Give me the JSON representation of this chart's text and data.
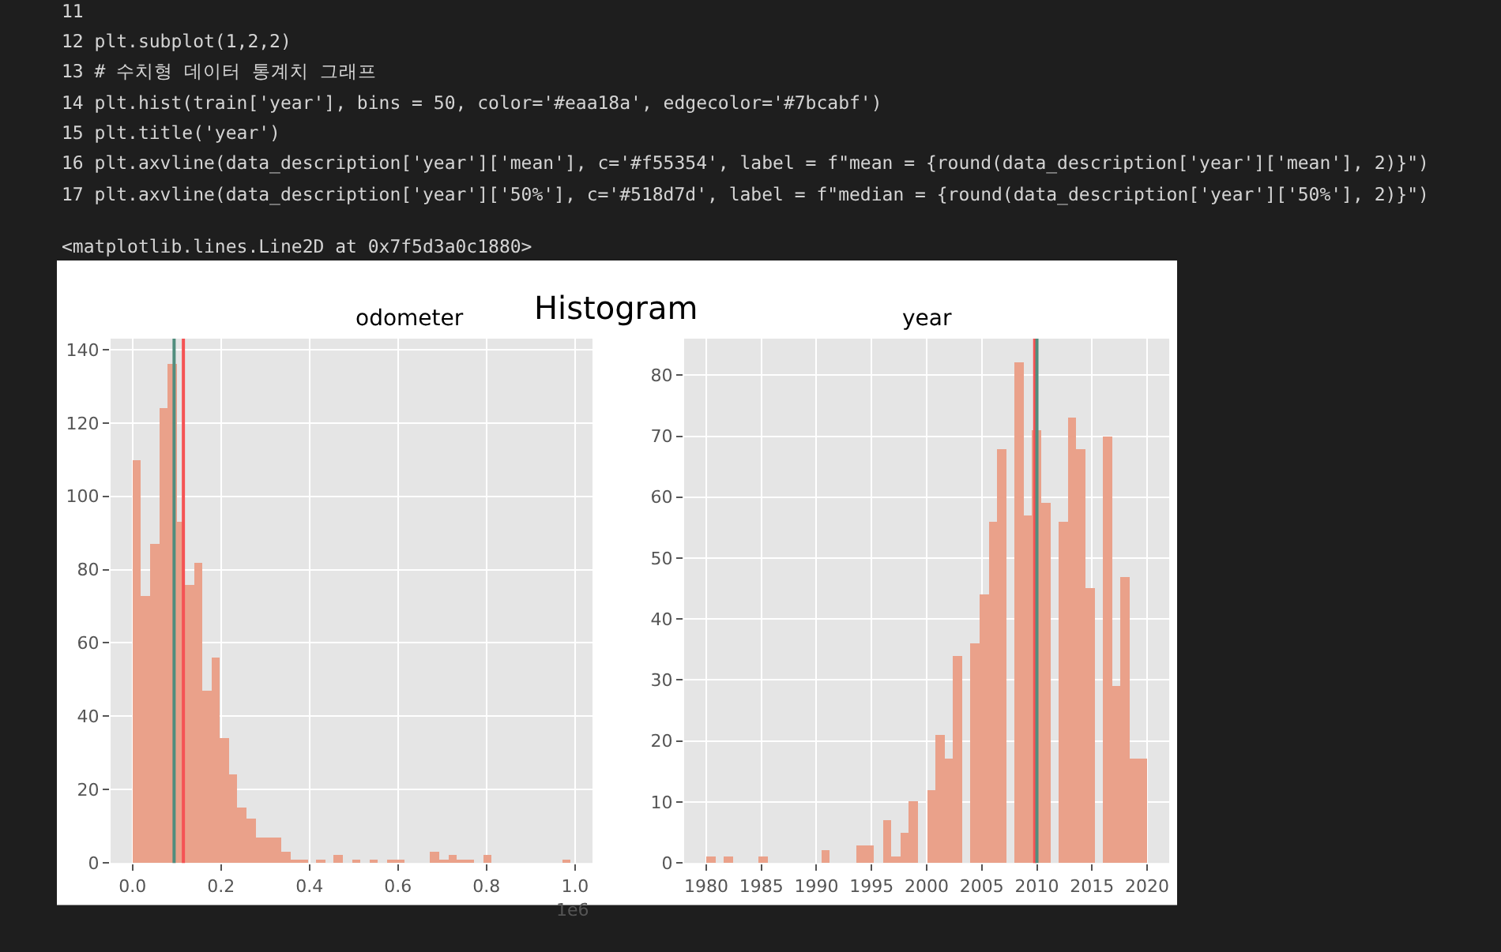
{
  "chart_data": [
    {
      "type": "other",
      "annotations": [
        "11",
        "12 plt.subplot(1,2,2)",
        "13 # 수치형 데이터 통계치 그래프",
        "14 plt.hist(train['year'], bins = 50, color='#eaa18a', edgecolor='#7bcabf')",
        "15 plt.title('year')",
        "16 plt.axvline(data_description['year']['mean'], c='#f55354', label = f\"mean = {round(data_description['year']['mean'], 2)}\")",
        "17 plt.axvline(data_description['year']['50%'], c='#518d7d', label = f\"median = {round(data_description['year']['50%'], 2)}\")",
        "<matplotlib.lines.Line2D at 0x7f5d3a0c1880>"
      ]
    },
    {
      "type": "other",
      "title": "Histogram"
    },
    {
      "type": "histogram",
      "title": "odometer",
      "color": "#eaa18a",
      "bins": [
        0,
        0.0198,
        0.0396,
        0.0594,
        0.0792,
        0.099,
        0.1188,
        0.1386,
        0.1584,
        0.1782,
        0.198,
        0.2178,
        0.2376,
        0.2574,
        0.2772,
        0.297,
        0.3168,
        0.3366,
        0.3564,
        0.3762,
        0.396,
        0.4158,
        0.4356,
        0.4554,
        0.4752,
        0.495,
        0.5148,
        0.5346,
        0.5544,
        0.5742,
        0.594,
        0.6138,
        0.6336,
        0.6534,
        0.6732,
        0.693,
        0.7128,
        0.7326,
        0.7524,
        0.7722,
        0.792,
        0.8118,
        0.8316,
        0.8514,
        0.8712,
        0.891,
        0.9108,
        0.9306,
        0.9504,
        0.9702,
        0.99
      ],
      "values": [
        110,
        73,
        87,
        124,
        136,
        93,
        76,
        82,
        47,
        56,
        34,
        24,
        15,
        12,
        7,
        7,
        7,
        3,
        1,
        1,
        0,
        1,
        0,
        2,
        0,
        1,
        0,
        1,
        0,
        1,
        1,
        0,
        0,
        0,
        3,
        1,
        2,
        1,
        1,
        0,
        2,
        0,
        0,
        0,
        0,
        0,
        0,
        0,
        0,
        1
      ],
      "xlim": [
        -0.0495,
        1.0395
      ],
      "ylim": [
        0,
        143
      ],
      "xticks": [
        {
          "value": 0,
          "label": "0.0"
        },
        0.2,
        0.4,
        0.6,
        0.8,
        {
          "value": 1,
          "label": "1.0"
        }
      ],
      "yticks": [
        0,
        20,
        40,
        60,
        80,
        100,
        120,
        140
      ],
      "grid": true,
      "annotations": [
        "1e6"
      ],
      "ref_lines": [
        {
          "axis": "x",
          "value": 0.115,
          "color": "#f55354"
        },
        {
          "axis": "x",
          "value": 0.094,
          "color": "#518d7d"
        }
      ]
    },
    {
      "type": "histogram",
      "title": "year",
      "color": "#eaa18a",
      "bins": [
        1980,
        1980.8,
        1981.6,
        1982.4,
        1983.2,
        1984,
        1984.8,
        1985.6,
        1986.4,
        1987.2,
        1988,
        1988.8,
        1989.6,
        1990.4,
        1991.2,
        1992,
        1992.8,
        1993.6,
        1994.4,
        1995.2,
        1996,
        1996.8,
        1997.6,
        1998.4,
        1999.2,
        2000,
        2000.8,
        2001.6,
        2002.4,
        2003.2,
        2004,
        2004.8,
        2005.6,
        2006.4,
        2007.2,
        2008,
        2008.8,
        2009.6,
        2010.4,
        2011.2,
        2012,
        2012.8,
        2013.6,
        2014.4,
        2015.2,
        2016,
        2016.8,
        2017.6,
        2018.4,
        2019.2,
        2020
      ],
      "values": [
        1,
        0,
        1,
        0,
        0,
        0,
        1,
        0,
        0,
        0,
        0,
        0,
        0,
        2,
        0,
        0,
        0,
        3,
        3,
        0,
        7,
        1,
        5,
        10,
        0,
        12,
        21,
        17,
        34,
        0,
        36,
        44,
        56,
        68,
        0,
        82,
        57,
        71,
        59,
        0,
        56,
        73,
        68,
        45,
        0,
        70,
        29,
        47,
        17,
        17
      ],
      "xlim": [
        1978,
        2022
      ],
      "ylim": [
        0,
        86
      ],
      "xticks": [
        1980,
        1985,
        1990,
        1995,
        2000,
        2005,
        2010,
        2015,
        2020
      ],
      "yticks": [
        0,
        10,
        20,
        30,
        40,
        50,
        60,
        70,
        80
      ],
      "grid": true,
      "ref_lines": [
        {
          "axis": "x",
          "value": 2009.8,
          "color": "#f55354"
        },
        {
          "axis": "x",
          "value": 2010,
          "color": "#518d7d"
        }
      ]
    }
  ]
}
